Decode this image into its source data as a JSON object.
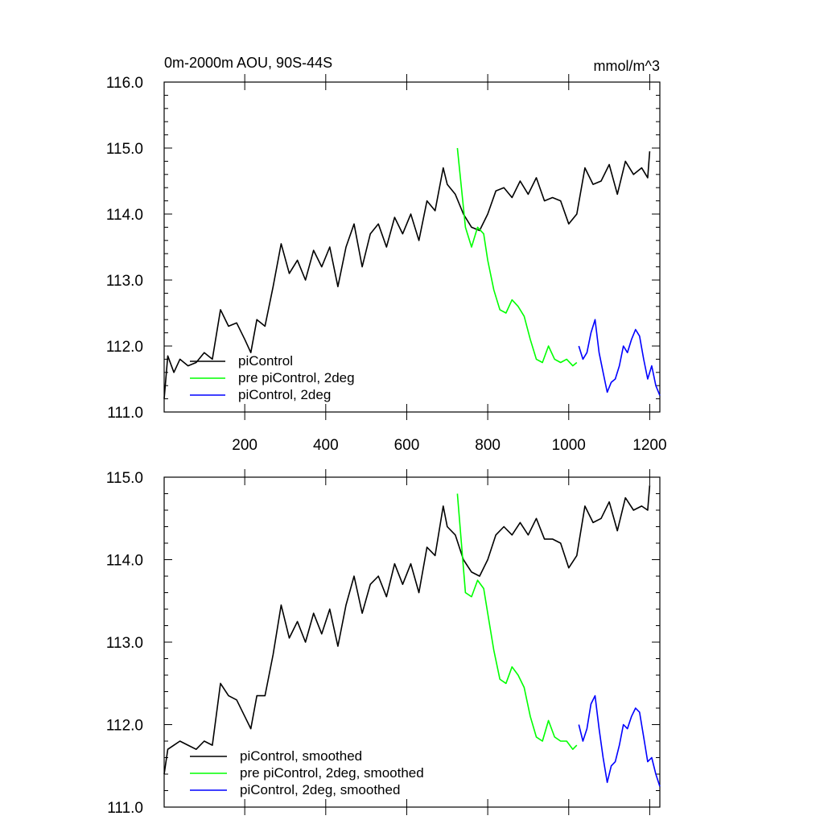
{
  "chart_data": [
    {
      "type": "line",
      "title": "0m-2000m AOU, 90S-44S",
      "units": "mmol/m^3",
      "xlim": [
        1,
        1225
      ],
      "ylim": [
        111.0,
        116.0
      ],
      "xticks": [
        200,
        400,
        600,
        800,
        1000,
        1200
      ],
      "xtick_labels": [
        "200",
        "400",
        "600",
        "800",
        "1000",
        "1200"
      ],
      "yticks": [
        111.0,
        112.0,
        113.0,
        114.0,
        115.0,
        116.0
      ],
      "ytick_labels": [
        "111.0",
        "112.0",
        "113.0",
        "114.0",
        "115.0",
        "116.0"
      ],
      "grid": false,
      "legend_position": "bottom-left",
      "series": [
        {
          "name": "piControl",
          "color": "#000000",
          "x": [
            1,
            10,
            25,
            40,
            60,
            80,
            100,
            120,
            140,
            160,
            180,
            200,
            215,
            230,
            250,
            270,
            290,
            310,
            330,
            350,
            370,
            390,
            410,
            430,
            450,
            470,
            490,
            510,
            530,
            550,
            570,
            590,
            610,
            630,
            650,
            670,
            690,
            700,
            720,
            740,
            760,
            780,
            800,
            820,
            840,
            860,
            880,
            900,
            920,
            940,
            960,
            980,
            1000,
            1020,
            1040,
            1060,
            1080,
            1100,
            1120,
            1140,
            1160,
            1180,
            1195,
            1200
          ],
          "y": [
            111.2,
            111.85,
            111.6,
            111.8,
            111.7,
            111.75,
            111.9,
            111.8,
            112.55,
            112.3,
            112.35,
            112.1,
            111.9,
            112.4,
            112.3,
            112.9,
            113.55,
            113.1,
            113.3,
            113.0,
            113.45,
            113.2,
            113.5,
            112.9,
            113.5,
            113.85,
            113.2,
            113.7,
            113.85,
            113.5,
            113.95,
            113.7,
            114.0,
            113.6,
            114.2,
            114.05,
            114.7,
            114.45,
            114.3,
            114.0,
            113.8,
            113.75,
            114.0,
            114.35,
            114.4,
            114.25,
            114.5,
            114.3,
            114.55,
            114.2,
            114.25,
            114.2,
            113.85,
            114.0,
            114.7,
            114.45,
            114.5,
            114.75,
            114.3,
            114.8,
            114.6,
            114.7,
            114.55,
            114.95
          ]
        },
        {
          "name": "pre piControl, 2deg",
          "color": "#00ff00",
          "x": [
            725,
            735,
            745,
            760,
            775,
            790,
            800,
            815,
            830,
            845,
            860,
            875,
            890,
            905,
            920,
            935,
            950,
            965,
            980,
            995,
            1010,
            1020
          ],
          "y": [
            115.0,
            114.4,
            113.8,
            113.5,
            113.8,
            113.7,
            113.3,
            112.85,
            112.55,
            112.5,
            112.7,
            112.6,
            112.45,
            112.1,
            111.8,
            111.75,
            112.0,
            111.8,
            111.75,
            111.8,
            111.7,
            111.75
          ]
        },
        {
          "name": "piControl, 2deg",
          "color": "#0000ff",
          "x": [
            1025,
            1035,
            1045,
            1055,
            1065,
            1075,
            1085,
            1095,
            1105,
            1115,
            1125,
            1135,
            1145,
            1155,
            1165,
            1175,
            1185,
            1195,
            1205,
            1215,
            1225
          ],
          "y": [
            112.0,
            111.8,
            111.9,
            112.2,
            112.4,
            111.9,
            111.6,
            111.3,
            111.45,
            111.5,
            111.7,
            112.0,
            111.9,
            112.1,
            112.25,
            112.15,
            111.8,
            111.5,
            111.7,
            111.4,
            111.25
          ]
        }
      ]
    },
    {
      "type": "line",
      "xlim": [
        1,
        1225
      ],
      "ylim": [
        111.0,
        115.0
      ],
      "yticks": [
        111.0,
        112.0,
        113.0,
        114.0,
        115.0
      ],
      "ytick_labels": [
        "111.0",
        "112.0",
        "113.0",
        "114.0",
        "115.0"
      ],
      "grid": false,
      "legend_position": "bottom-left",
      "series": [
        {
          "name": "piControl, smoothed",
          "color": "#000000",
          "x": [
            1,
            10,
            25,
            40,
            60,
            80,
            100,
            120,
            140,
            160,
            180,
            200,
            215,
            230,
            250,
            270,
            290,
            310,
            330,
            350,
            370,
            390,
            410,
            430,
            450,
            470,
            490,
            510,
            530,
            550,
            570,
            590,
            610,
            630,
            650,
            670,
            690,
            700,
            720,
            740,
            760,
            780,
            800,
            820,
            840,
            860,
            880,
            900,
            920,
            940,
            960,
            980,
            1000,
            1020,
            1040,
            1060,
            1080,
            1100,
            1120,
            1140,
            1160,
            1180,
            1195,
            1200
          ],
          "y": [
            111.4,
            111.7,
            111.75,
            111.8,
            111.75,
            111.7,
            111.8,
            111.75,
            112.5,
            112.35,
            112.3,
            112.1,
            111.95,
            112.35,
            112.35,
            112.85,
            113.45,
            113.05,
            113.25,
            113.0,
            113.35,
            113.1,
            113.4,
            112.95,
            113.45,
            113.8,
            113.35,
            113.7,
            113.8,
            113.55,
            113.95,
            113.7,
            113.95,
            113.6,
            114.15,
            114.05,
            114.65,
            114.4,
            114.3,
            114.0,
            113.85,
            113.8,
            114.0,
            114.3,
            114.4,
            114.3,
            114.45,
            114.3,
            114.5,
            114.25,
            114.25,
            114.2,
            113.9,
            114.05,
            114.65,
            114.45,
            114.5,
            114.7,
            114.35,
            114.75,
            114.6,
            114.65,
            114.6,
            114.9
          ]
        },
        {
          "name": "pre piControl, 2deg, smoothed",
          "color": "#00ff00",
          "x": [
            725,
            735,
            745,
            760,
            775,
            790,
            800,
            815,
            830,
            845,
            860,
            875,
            890,
            905,
            920,
            935,
            950,
            965,
            980,
            995,
            1010,
            1020
          ],
          "y": [
            114.8,
            114.2,
            113.6,
            113.55,
            113.75,
            113.65,
            113.35,
            112.9,
            112.55,
            112.5,
            112.7,
            112.6,
            112.45,
            112.1,
            111.85,
            111.8,
            112.05,
            111.85,
            111.8,
            111.8,
            111.7,
            111.75
          ]
        },
        {
          "name": "piControl, 2deg, smoothed",
          "color": "#0000ff",
          "x": [
            1025,
            1035,
            1045,
            1055,
            1065,
            1075,
            1085,
            1095,
            1105,
            1115,
            1125,
            1135,
            1145,
            1155,
            1165,
            1175,
            1185,
            1195,
            1205,
            1215,
            1225
          ],
          "y": [
            112.0,
            111.8,
            111.95,
            112.25,
            112.35,
            111.95,
            111.6,
            111.3,
            111.5,
            111.55,
            111.75,
            112.0,
            111.95,
            112.1,
            112.2,
            112.15,
            111.85,
            111.55,
            111.6,
            111.4,
            111.25
          ]
        }
      ]
    }
  ]
}
